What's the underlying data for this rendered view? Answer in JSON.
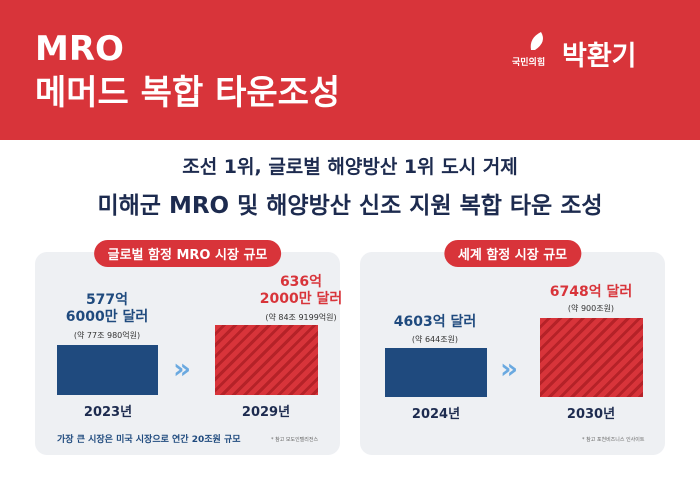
{
  "header": {
    "title_lines": [
      "MRO",
      "메머드 복합 타운조성"
    ],
    "party": "국민의힘",
    "name": "박환기"
  },
  "subtitle": {
    "line1": "조선 1위, 글로벌 해양방산 1위 도시 거제",
    "line2": "미해군 MRO 및 해양방산 신조 지원 복합 타운 조성"
  },
  "panels": [
    {
      "title": "글로벌 함정 MRO 시장 규모",
      "items": [
        {
          "amount_lines": [
            "577억",
            "6000만 달러"
          ],
          "krw": "(약 77조 980억원)",
          "year": "2023년"
        },
        {
          "amount_lines": [
            "636억",
            "2000만 달러"
          ],
          "krw": "(약 84조 9199억원)",
          "year": "2029년"
        }
      ],
      "note": "가장 큰 시장은 미국 시장으로 연간 20조원 규모",
      "source": "* 참고 모도인텔리전스"
    },
    {
      "title": "세계 함정 시장 규모",
      "items": [
        {
          "amount_lines": [
            "4603억 달러"
          ],
          "krw": "(약 644조원)",
          "year": "2024년"
        },
        {
          "amount_lines": [
            "6748억 달러"
          ],
          "krw": "(약 900조원)",
          "year": "2030년"
        }
      ],
      "source": "* 참고 포천비즈니스 인사이트"
    }
  ]
}
